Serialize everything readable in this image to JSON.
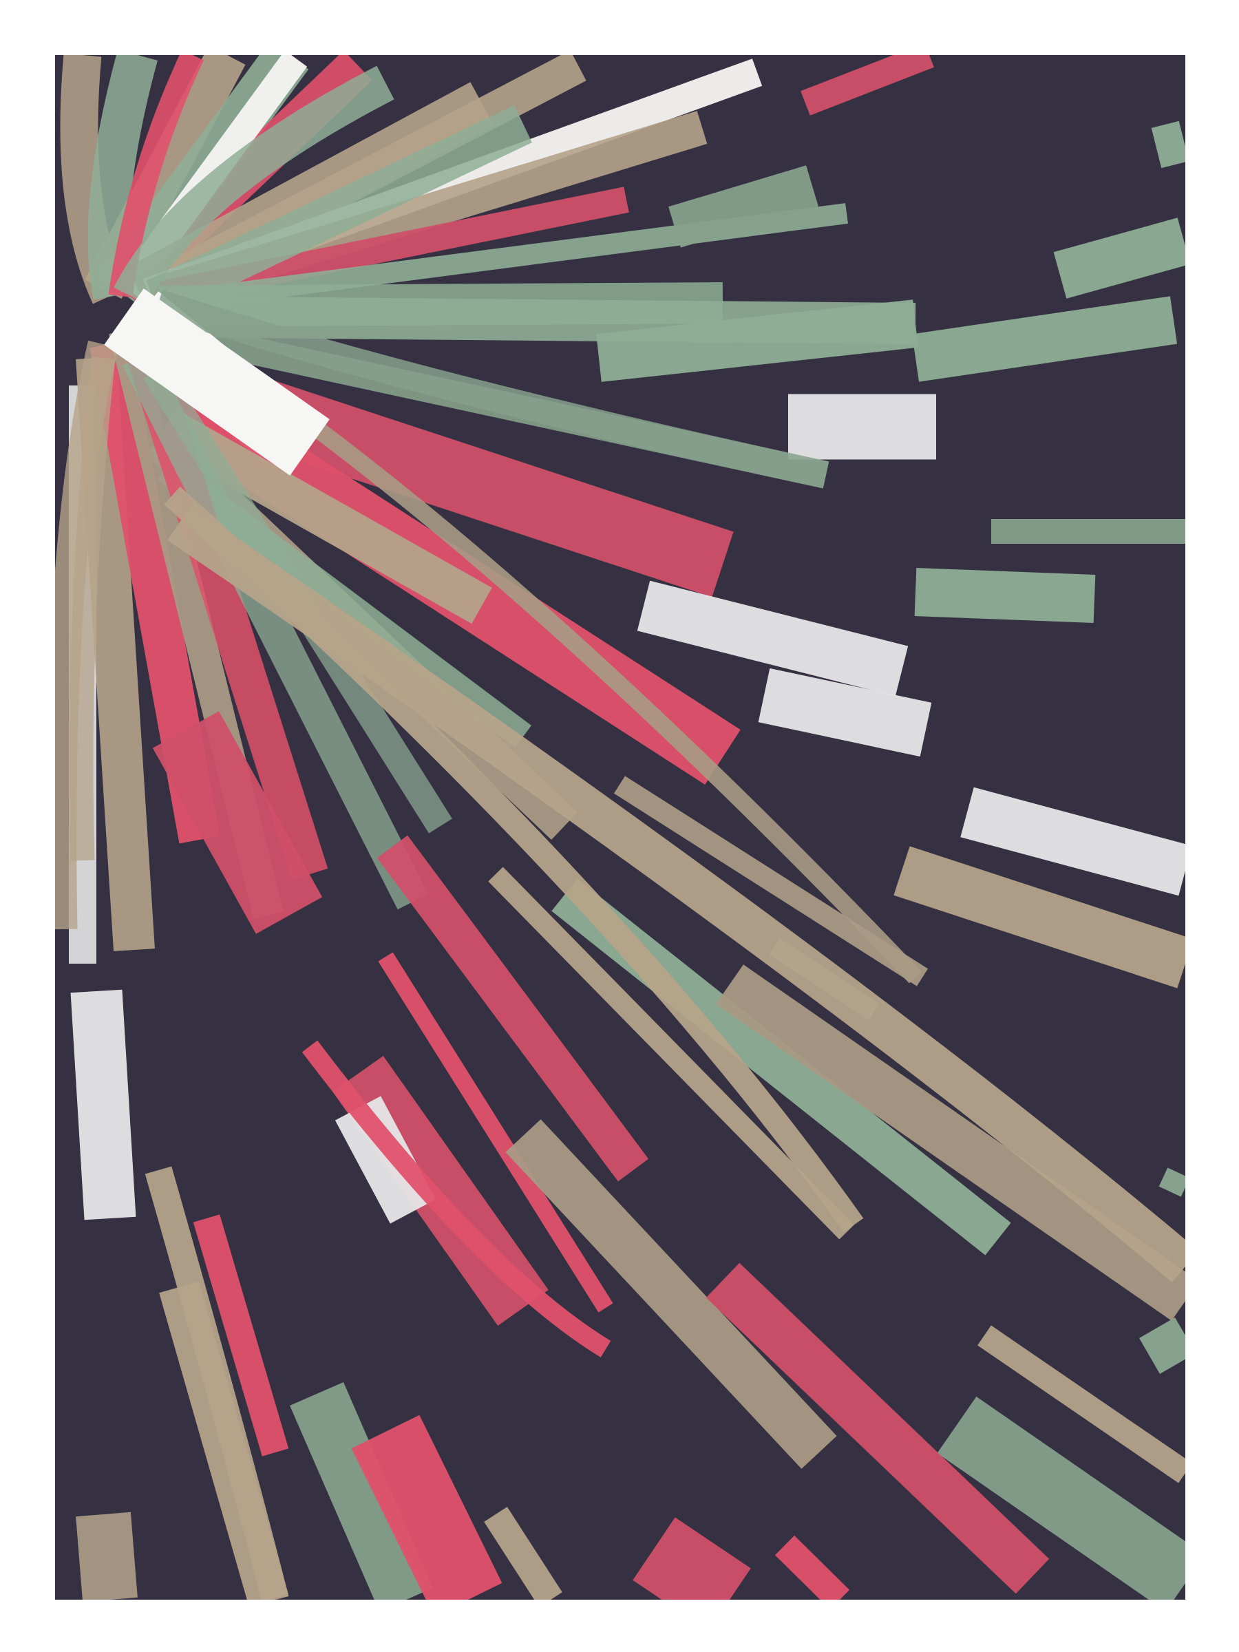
{
  "artwork": {
    "description_kind": "generative-art",
    "palette": {
      "background": "#363142",
      "frame": "#ffffff",
      "red": "#e0516b",
      "red_dark": "#d0506a",
      "green": "#8fae96",
      "green_dark": "#86a08c",
      "tan": "#b5a38a",
      "tan_dark": "#a89a84",
      "white": "#e6e6e8",
      "white_bright": "#f6f6f4"
    }
  }
}
